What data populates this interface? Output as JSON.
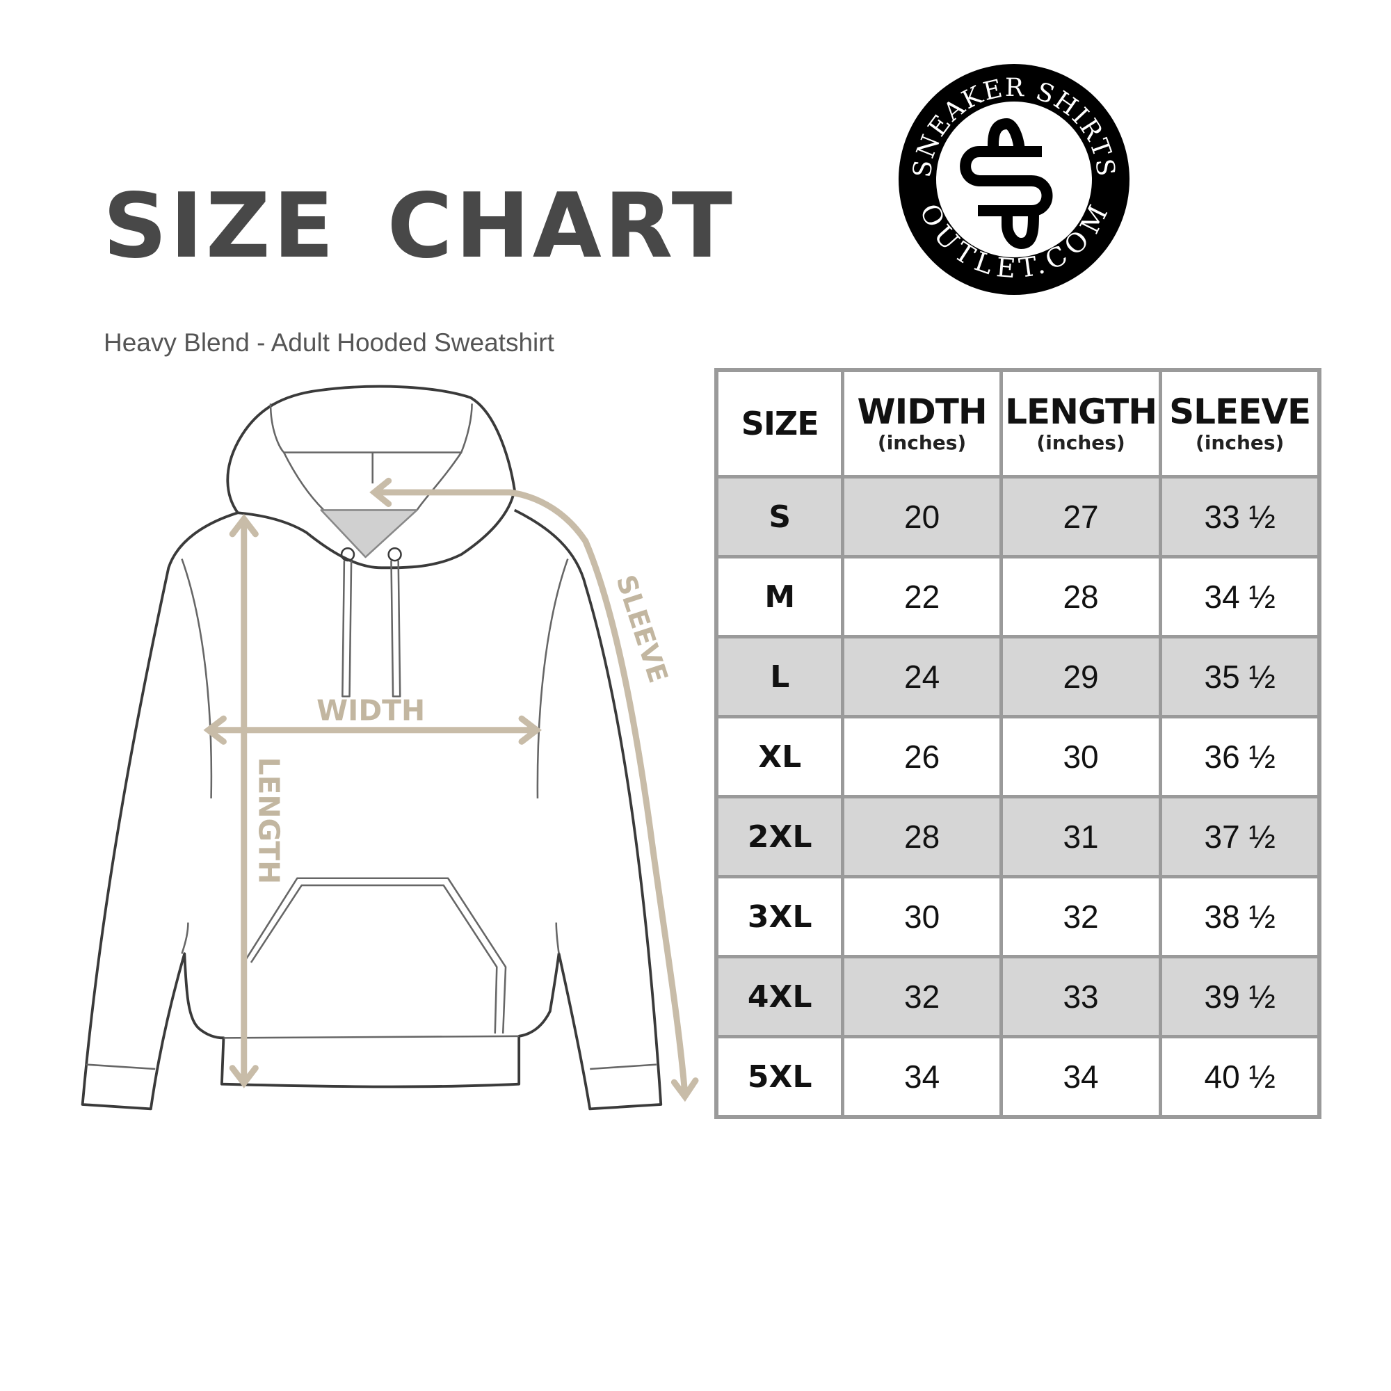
{
  "header": {
    "title": "SIZE CHART",
    "subtitle": "Heavy Blend - Adult Hooded Sweatshirt"
  },
  "logo": {
    "top_text": "SNEAKER SHIRTS",
    "bottom_text": "OUTLET.COM",
    "monogram": "SS"
  },
  "diagram": {
    "labels": {
      "width": "WIDTH",
      "length": "LENGTH",
      "sleeve": "SLEEVE"
    },
    "arrow_color": "#c8bca8",
    "outline_color": "#3a3a3a"
  },
  "table": {
    "columns": [
      {
        "label": "SIZE",
        "unit": ""
      },
      {
        "label": "WIDTH",
        "unit": "(inches)"
      },
      {
        "label": "LENGTH",
        "unit": "(inches)"
      },
      {
        "label": "SLEEVE",
        "unit": "(inches)"
      }
    ],
    "rows": [
      {
        "size": "S",
        "width": "20",
        "length": "27",
        "sleeve": "33 ½"
      },
      {
        "size": "M",
        "width": "22",
        "length": "28",
        "sleeve": "34 ½"
      },
      {
        "size": "L",
        "width": "24",
        "length": "29",
        "sleeve": "35 ½"
      },
      {
        "size": "XL",
        "width": "26",
        "length": "30",
        "sleeve": "36 ½"
      },
      {
        "size": "2XL",
        "width": "28",
        "length": "31",
        "sleeve": "37 ½"
      },
      {
        "size": "3XL",
        "width": "30",
        "length": "32",
        "sleeve": "38 ½"
      },
      {
        "size": "4XL",
        "width": "32",
        "length": "33",
        "sleeve": "39 ½"
      },
      {
        "size": "5XL",
        "width": "34",
        "length": "34",
        "sleeve": "40 ½"
      }
    ],
    "shade_color": "#d6d6d6",
    "border_color": "#9a9a9a"
  }
}
